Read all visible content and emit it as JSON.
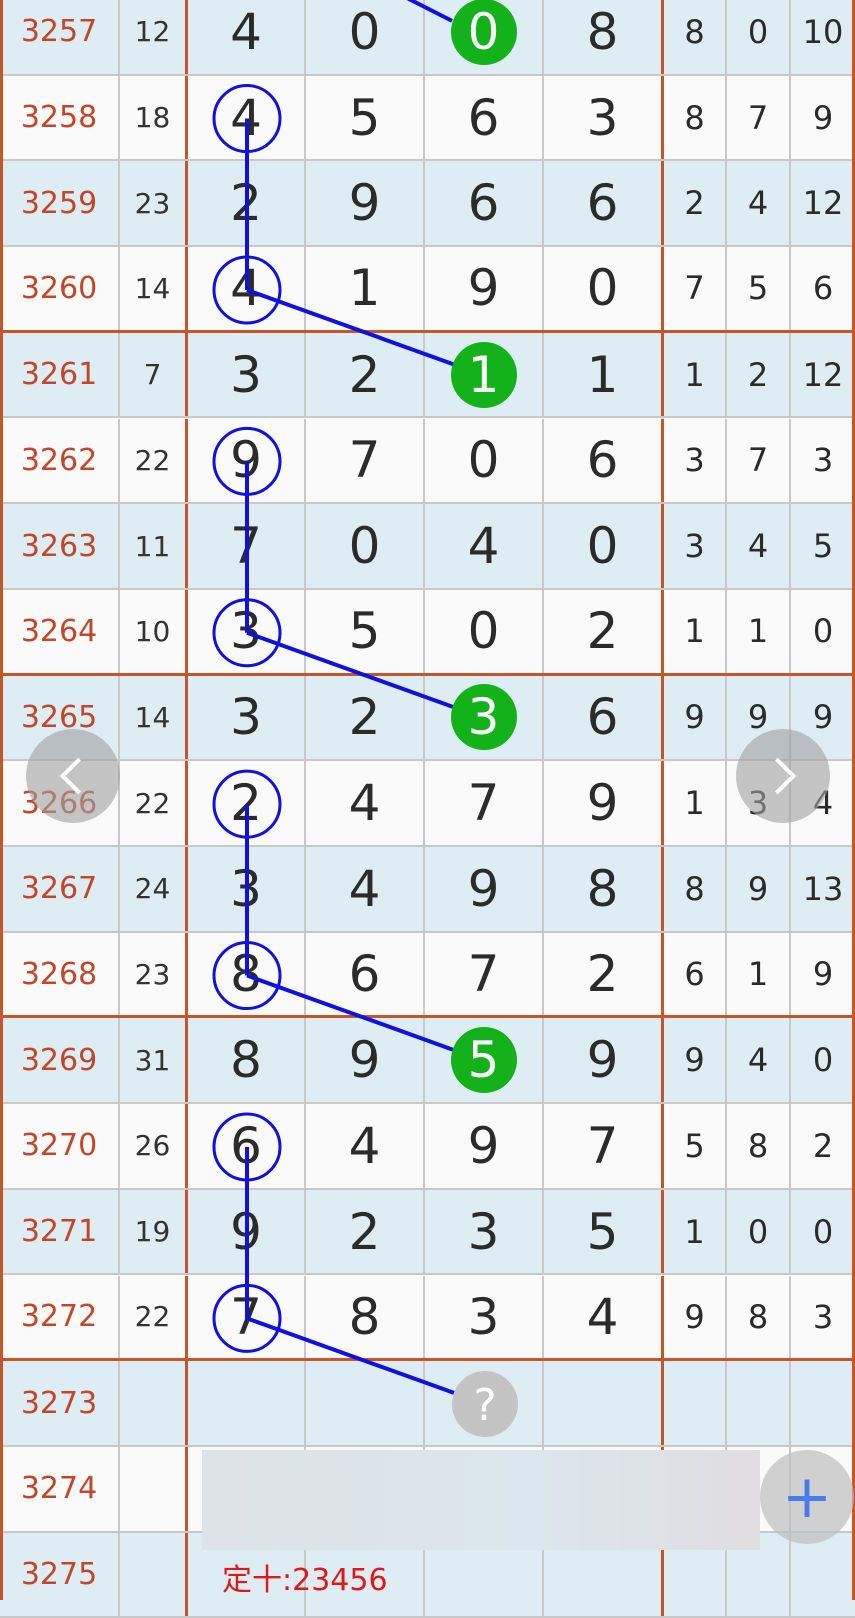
{
  "rows": [
    {
      "id": "3257",
      "sum": "12",
      "d": [
        "4",
        "0",
        "0",
        "8"
      ],
      "e": [
        "8",
        "0",
        "10"
      ]
    },
    {
      "id": "3258",
      "sum": "18",
      "d": [
        "4",
        "5",
        "6",
        "3"
      ],
      "e": [
        "8",
        "7",
        "9"
      ]
    },
    {
      "id": "3259",
      "sum": "23",
      "d": [
        "2",
        "9",
        "6",
        "6"
      ],
      "e": [
        "2",
        "4",
        "12"
      ]
    },
    {
      "id": "3260",
      "sum": "14",
      "d": [
        "4",
        "1",
        "9",
        "0"
      ],
      "e": [
        "7",
        "5",
        "6"
      ]
    },
    {
      "id": "3261",
      "sum": "7",
      "d": [
        "3",
        "2",
        "1",
        "1"
      ],
      "e": [
        "1",
        "2",
        "12"
      ]
    },
    {
      "id": "3262",
      "sum": "22",
      "d": [
        "9",
        "7",
        "0",
        "6"
      ],
      "e": [
        "3",
        "7",
        "3"
      ]
    },
    {
      "id": "3263",
      "sum": "11",
      "d": [
        "7",
        "0",
        "4",
        "0"
      ],
      "e": [
        "3",
        "4",
        "5"
      ]
    },
    {
      "id": "3264",
      "sum": "10",
      "d": [
        "3",
        "5",
        "0",
        "2"
      ],
      "e": [
        "1",
        "1",
        "0"
      ]
    },
    {
      "id": "3265",
      "sum": "14",
      "d": [
        "3",
        "2",
        "3",
        "6"
      ],
      "e": [
        "9",
        "9",
        "9"
      ]
    },
    {
      "id": "3266",
      "sum": "22",
      "d": [
        "2",
        "4",
        "7",
        "9"
      ],
      "e": [
        "1",
        "3",
        "4"
      ]
    },
    {
      "id": "3267",
      "sum": "24",
      "d": [
        "3",
        "4",
        "9",
        "8"
      ],
      "e": [
        "8",
        "9",
        "13"
      ]
    },
    {
      "id": "3268",
      "sum": "23",
      "d": [
        "8",
        "6",
        "7",
        "2"
      ],
      "e": [
        "6",
        "1",
        "9"
      ]
    },
    {
      "id": "3269",
      "sum": "31",
      "d": [
        "8",
        "9",
        "5",
        "9"
      ],
      "e": [
        "9",
        "4",
        "0"
      ]
    },
    {
      "id": "3270",
      "sum": "26",
      "d": [
        "6",
        "4",
        "9",
        "7"
      ],
      "e": [
        "5",
        "8",
        "2"
      ]
    },
    {
      "id": "3271",
      "sum": "19",
      "d": [
        "9",
        "2",
        "3",
        "5"
      ],
      "e": [
        "1",
        "0",
        "0"
      ]
    },
    {
      "id": "3272",
      "sum": "22",
      "d": [
        "7",
        "8",
        "3",
        "4"
      ],
      "e": [
        "9",
        "8",
        "3"
      ]
    },
    {
      "id": "3273",
      "sum": "",
      "d": [
        "",
        "",
        "",
        ""
      ],
      "e": [
        "",
        "",
        ""
      ]
    },
    {
      "id": "3274",
      "sum": "",
      "d": [
        "",
        "",
        "",
        ""
      ],
      "e": [
        "",
        "",
        ""
      ]
    },
    {
      "id": "3275",
      "sum": "",
      "d": [
        "",
        "",
        "",
        ""
      ],
      "e": [
        "",
        "",
        ""
      ]
    }
  ],
  "blue_circle_rows": [
    1,
    3,
    5,
    7,
    9,
    11,
    13,
    15
  ],
  "green_circle_rows": [
    0,
    4,
    8,
    12
  ],
  "prediction_row": 16,
  "prediction_symbol": "?",
  "note": "定十:23456",
  "nav": {
    "prev": "‹",
    "next": "›",
    "fab": "+"
  },
  "colors": {
    "circle": "#1010e0",
    "green": "#13b21a",
    "red": "#c4562a",
    "note": "#e01818"
  }
}
